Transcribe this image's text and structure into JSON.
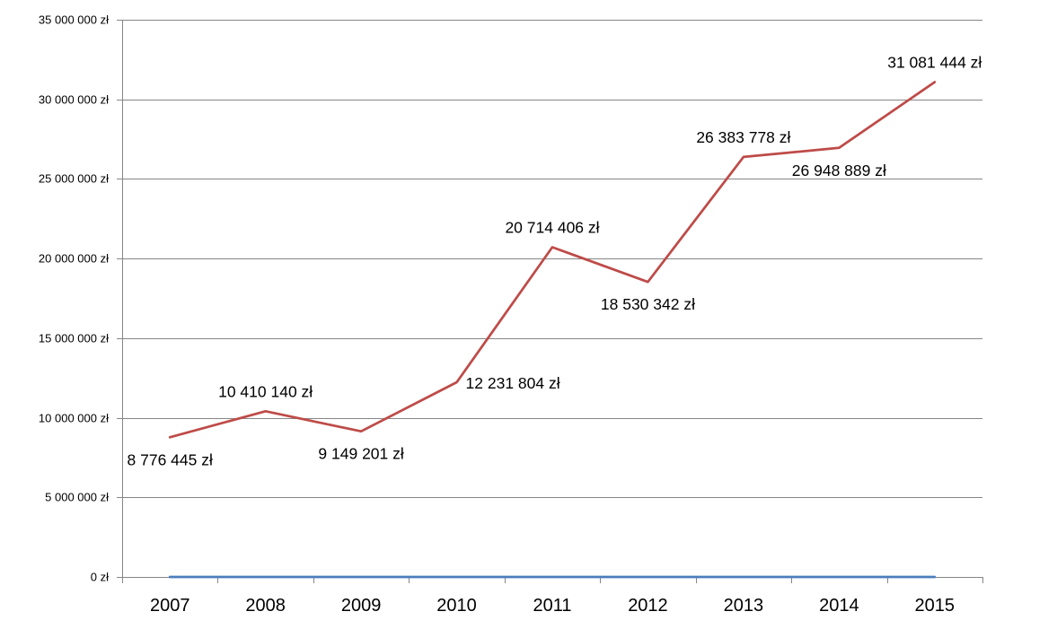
{
  "chart_data": {
    "type": "line",
    "title": "",
    "xlabel": "",
    "ylabel": "",
    "categories": [
      "2007",
      "2008",
      "2009",
      "2010",
      "2011",
      "2012",
      "2013",
      "2014",
      "2015"
    ],
    "ylim": [
      0,
      35000000
    ],
    "yticks": [
      0,
      5000000,
      10000000,
      15000000,
      20000000,
      25000000,
      30000000,
      35000000
    ],
    "ytick_labels": [
      "0 zł",
      "5 000 000 zł",
      "10 000 000 zł",
      "15 000 000 zł",
      "20 000 000 zł",
      "25 000 000 zł",
      "30 000 000 zł",
      "35 000 000 zł"
    ],
    "grid": true,
    "legend": "none",
    "series": [
      {
        "color": "#be4b48",
        "values": [
          8776445,
          10410140,
          9149201,
          12231804,
          20714406,
          18530342,
          26383778,
          26948889,
          31081444
        ],
        "data_labels": [
          "8 776 445 zł",
          "10 410 140 zł",
          "9 149 201 zł",
          "12 231 804 zł",
          "20 714 406 zł",
          "18 530 342 zł",
          "26 383 778 zł",
          "26 948 889 zł",
          "31 081 444 zł"
        ],
        "label_positions": [
          "below",
          "above",
          "below",
          "right",
          "above",
          "below",
          "above",
          "below",
          "above"
        ]
      },
      {
        "color": "#4a7ebb",
        "values": [
          0,
          0,
          0,
          0,
          0,
          0,
          0,
          0,
          0
        ]
      }
    ]
  }
}
